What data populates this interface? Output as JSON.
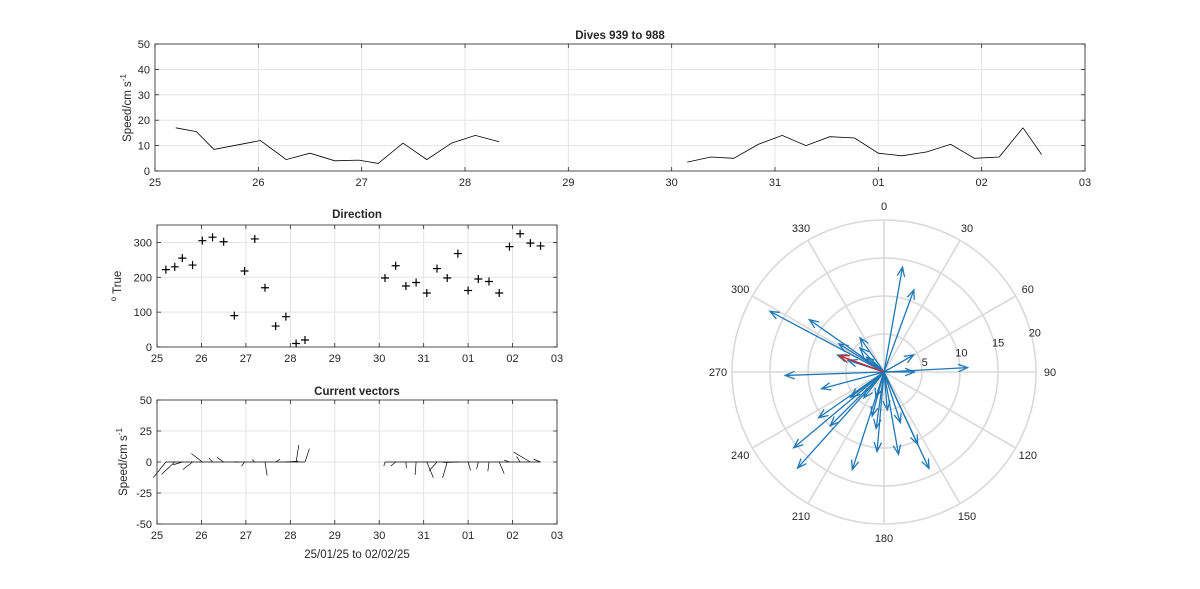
{
  "chart_data": [
    {
      "type": "line",
      "title": "Dives 939 to 988",
      "ylabel": "Speed/cm s",
      "ylabel_superscript": "-1",
      "xlim": [
        0,
        9
      ],
      "ylim": [
        0,
        50
      ],
      "yticks": [
        0,
        10,
        20,
        30,
        40,
        50
      ],
      "xtick_labels": [
        "25",
        "26",
        "27",
        "28",
        "29",
        "30",
        "31",
        "01",
        "02",
        "03"
      ],
      "grid": true,
      "series": [
        {
          "x": [
            0.2,
            0.4,
            0.57,
            0.83,
            1.02,
            1.27,
            1.5,
            1.74,
            1.97,
            2.16,
            2.4,
            2.63,
            2.87,
            3.1,
            3.33
          ],
          "y": [
            17,
            15.5,
            8.5,
            10.5,
            12,
            4.5,
            7,
            4,
            4.3,
            3,
            11,
            4.5,
            11,
            14,
            11.5
          ]
        },
        {
          "x": [
            5.15,
            5.38,
            5.6,
            5.84,
            6.07,
            6.3,
            6.53,
            6.77,
            7.0,
            7.23,
            7.47,
            7.7,
            7.93,
            8.17,
            8.4
          ],
          "y": [
            3.5,
            5.5,
            5,
            10.5,
            14,
            10,
            13.5,
            13,
            7,
            6,
            7.5,
            10.5,
            5,
            5.5,
            17
          ]
        },
        {
          "x": [
            8.4,
            8.58
          ],
          "y": [
            17,
            6.5
          ]
        }
      ]
    },
    {
      "type": "scatter",
      "title": "Direction",
      "ylabel": "True",
      "ylabel_prefix": "o",
      "xlim": [
        0,
        9
      ],
      "ylim": [
        0,
        350
      ],
      "yticks": [
        0,
        100,
        200,
        300
      ],
      "xtick_labels": [
        "25",
        "26",
        "27",
        "28",
        "29",
        "30",
        "31",
        "01",
        "02",
        "03"
      ],
      "grid": true,
      "x": [
        0.2,
        0.4,
        0.57,
        0.8,
        1.02,
        1.25,
        1.5,
        1.74,
        1.97,
        2.2,
        2.43,
        2.67,
        2.9,
        3.13,
        3.33,
        5.13,
        5.37,
        5.6,
        5.83,
        6.07,
        6.3,
        6.53,
        6.77,
        7.0,
        7.23,
        7.47,
        7.7,
        7.93,
        8.17,
        8.4,
        8.63
      ],
      "y": [
        222,
        230,
        255,
        235,
        305,
        315,
        302,
        90,
        218,
        310,
        170,
        60,
        87,
        10,
        20,
        198,
        233,
        175,
        185,
        155,
        225,
        198,
        268,
        162,
        195,
        188,
        155,
        288,
        325,
        298,
        290
      ]
    },
    {
      "type": "quiver",
      "title": "Current vectors",
      "ylabel": "Speed/cm s",
      "ylabel_superscript": "-1",
      "xlabel": "25/01/25 to 02/02/25",
      "xlim": [
        0,
        9
      ],
      "ylim": [
        -50,
        50
      ],
      "yticks": [
        -50,
        -25,
        0,
        25,
        50
      ],
      "xtick_labels": [
        "25",
        "26",
        "27",
        "28",
        "29",
        "30",
        "31",
        "01",
        "02",
        "03"
      ],
      "grid": true
    },
    {
      "type": "compass",
      "angle_labels": [
        "0",
        "30",
        "60",
        "90",
        "120",
        "150",
        "180",
        "210",
        "240",
        "270",
        "300",
        "330"
      ],
      "radius_labels": [
        "5",
        "10",
        "15",
        "20"
      ],
      "rmax": 20,
      "mean_vector": {
        "direction": 290,
        "speed": 6.2,
        "color": "#d62728"
      },
      "vector_color": "#1f77b4"
    }
  ]
}
